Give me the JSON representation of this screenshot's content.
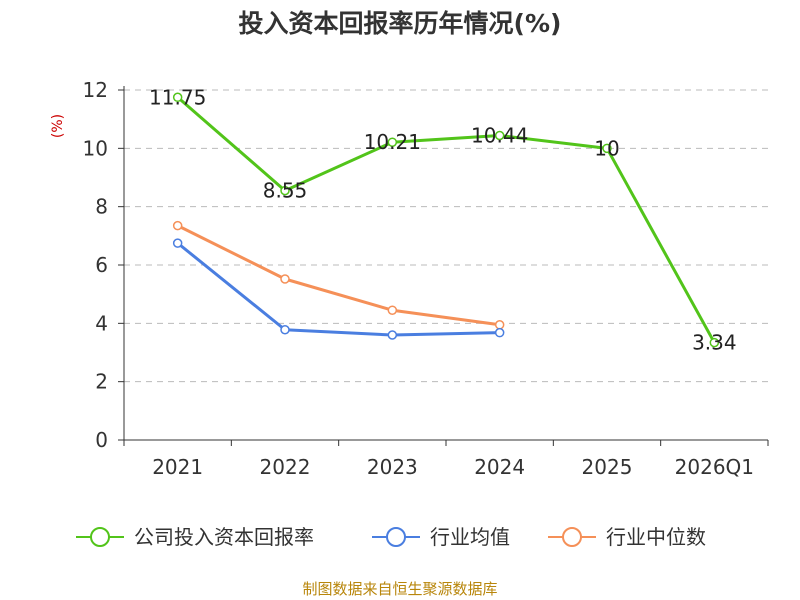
{
  "chart_data": {
    "type": "line",
    "title": "投入资本回报率历年情况(%)",
    "ylabel": "(%)",
    "xlabel": "",
    "categories": [
      "2021",
      "2022",
      "2023",
      "2024",
      "2025",
      "2026Q1"
    ],
    "ylim": [
      0,
      12
    ],
    "yticks": [
      0,
      2,
      4,
      6,
      8,
      10,
      12
    ],
    "grid": true,
    "legend_position": "bottom",
    "series": [
      {
        "name": "公司投入资本回报率",
        "color": "#52c41a",
        "values": [
          11.75,
          8.55,
          10.21,
          10.44,
          10,
          3.34
        ],
        "labels": [
          "11.75",
          "8.55",
          "10.21",
          "10.44",
          "10",
          "3.34"
        ]
      },
      {
        "name": "行业均值",
        "color": "#4a7ee0",
        "values": [
          6.75,
          3.78,
          3.6,
          3.68,
          null,
          null
        ],
        "labels": []
      },
      {
        "name": "行业中位数",
        "color": "#f59058",
        "values": [
          7.35,
          5.52,
          4.45,
          3.95,
          null,
          null
        ],
        "labels": []
      }
    ],
    "source": "制图数据来自恒生聚源数据库"
  }
}
